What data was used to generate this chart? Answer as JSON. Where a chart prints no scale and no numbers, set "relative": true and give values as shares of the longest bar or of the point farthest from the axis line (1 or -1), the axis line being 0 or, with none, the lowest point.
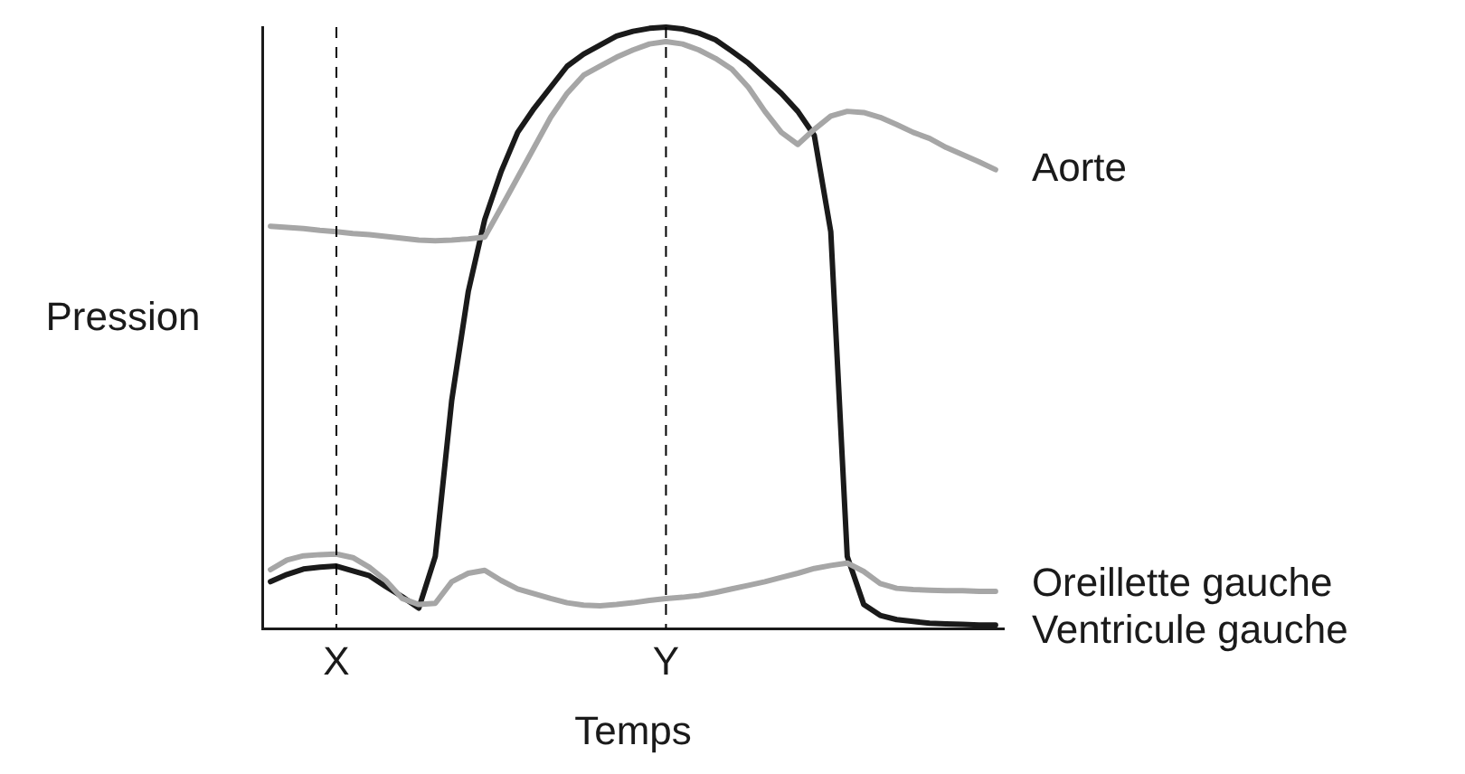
{
  "chart_data": {
    "type": "line",
    "relative": true,
    "xlabel": "Temps",
    "ylabel": "Pression",
    "tick_labels": "x",
    "legend": false,
    "marker": "none",
    "line_style": "solid",
    "categories": [
      null,
      null,
      null,
      null,
      "X",
      null,
      null,
      null,
      null,
      null,
      null,
      null,
      null,
      null,
      null,
      null,
      null,
      null,
      null,
      null,
      null,
      null,
      null,
      null,
      "Y",
      null,
      null,
      null,
      null,
      null,
      null,
      null,
      null,
      null,
      null,
      null,
      null,
      null,
      null,
      null,
      null,
      null,
      null,
      null,
      null
    ],
    "ref_lines": [
      {
        "axis": "x",
        "value": "X",
        "color": "#000000",
        "line_style": "dashed"
      },
      {
        "axis": "x",
        "value": "Y",
        "color": "#000000",
        "line_style": "dashed"
      }
    ],
    "series": [
      {
        "name": "Aorte",
        "color": "#a6a6a6",
        "values": [
          0.669,
          0.667,
          0.665,
          0.662,
          0.66,
          0.657,
          0.655,
          0.652,
          0.649,
          0.646,
          0.645,
          0.646,
          0.648,
          0.651,
          0.7,
          0.75,
          0.8,
          0.85,
          0.89,
          0.92,
          0.935,
          0.95,
          0.962,
          0.972,
          0.976,
          0.972,
          0.962,
          0.948,
          0.93,
          0.9,
          0.86,
          0.825,
          0.805,
          0.83,
          0.852,
          0.86,
          0.858,
          0.85,
          0.838,
          0.825,
          0.815,
          0.8,
          0.788,
          0.776,
          0.763
        ]
      },
      {
        "name": "Oreillette gauche",
        "color": "#a6a6a6",
        "values": [
          0.098,
          0.114,
          0.121,
          0.123,
          0.124,
          0.118,
          0.102,
          0.08,
          0.05,
          0.04,
          0.042,
          0.078,
          0.092,
          0.097,
          0.08,
          0.066,
          0.058,
          0.05,
          0.043,
          0.039,
          0.038,
          0.04,
          0.043,
          0.047,
          0.05,
          0.052,
          0.055,
          0.06,
          0.066,
          0.072,
          0.078,
          0.085,
          0.092,
          0.1,
          0.105,
          0.109,
          0.095,
          0.075,
          0.067,
          0.065,
          0.064,
          0.063,
          0.063,
          0.062,
          0.062
        ]
      },
      {
        "name": "Ventricule gauche",
        "color": "#1a1a1a",
        "values": [
          0.078,
          0.09,
          0.099,
          0.102,
          0.104,
          0.096,
          0.088,
          0.07,
          0.053,
          0.034,
          0.12,
          0.38,
          0.56,
          0.68,
          0.76,
          0.825,
          0.865,
          0.9,
          0.935,
          0.955,
          0.97,
          0.985,
          0.993,
          0.998,
          1,
          0.997,
          0.99,
          0.979,
          0.96,
          0.94,
          0.915,
          0.89,
          0.86,
          0.82,
          0.66,
          0.12,
          0.04,
          0.022,
          0.015,
          0.012,
          0.009,
          0.008,
          0.007,
          0.006,
          0.006
        ]
      }
    ]
  }
}
